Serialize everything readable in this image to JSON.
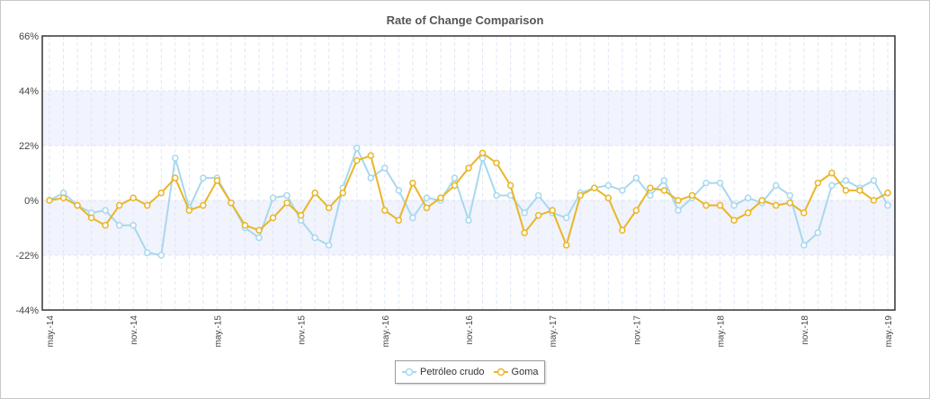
{
  "chart_data": {
    "type": "line",
    "title": "Rate of Change Comparison",
    "xlabel": "",
    "ylabel": "",
    "ylim": [
      -44,
      66
    ],
    "yticks": [
      "66%",
      "44%",
      "22%",
      "0%",
      "-22%",
      "-44%"
    ],
    "ytick_values": [
      66,
      44,
      22,
      0,
      -22,
      -44
    ],
    "x_tick_labels": [
      "may.-14",
      "nov.-14",
      "may.-15",
      "nov.-15",
      "may.-16",
      "nov.-16",
      "may.-17",
      "nov.-17",
      "may.-18",
      "nov.-18",
      "may.-19"
    ],
    "x_tick_index": [
      0,
      6,
      12,
      18,
      24,
      30,
      36,
      42,
      48,
      54,
      60
    ],
    "grid": true,
    "bands": [
      [
        22,
        44
      ],
      [
        -22,
        0
      ]
    ],
    "legend_position": "bottom-center",
    "series": [
      {
        "name": "Petróleo crudo",
        "color": "#a8d8ee",
        "values": [
          0,
          3,
          -2,
          -5,
          -4,
          -10,
          -10,
          -21,
          -22,
          17,
          -3,
          9,
          9,
          -1,
          -11,
          -15,
          1,
          2,
          -8,
          -15,
          -18,
          5,
          21,
          9,
          13,
          4,
          -7,
          1,
          0,
          9,
          -8,
          17,
          2,
          2,
          -5,
          2,
          -5,
          -7,
          3,
          5,
          6,
          4,
          9,
          2,
          8,
          -4,
          1,
          7,
          7,
          -2,
          1,
          -1,
          6,
          2,
          -18,
          -13,
          6,
          8,
          5,
          8,
          -2
        ]
      },
      {
        "name": "Goma",
        "color": "#eab626",
        "values": [
          0,
          1,
          -2,
          -7,
          -10,
          -2,
          1,
          -2,
          3,
          9,
          -4,
          -2,
          8,
          -1,
          -10,
          -12,
          -7,
          -1,
          -6,
          3,
          -3,
          3,
          16,
          18,
          -4,
          -8,
          7,
          -3,
          1,
          6,
          13,
          19,
          15,
          6,
          -13,
          -6,
          -4,
          -18,
          2,
          5,
          1,
          -12,
          -4,
          5,
          4,
          0,
          2,
          -2,
          -2,
          -8,
          -5,
          0,
          -2,
          -1,
          -5,
          7,
          11,
          4,
          4,
          0,
          3
        ]
      }
    ]
  }
}
